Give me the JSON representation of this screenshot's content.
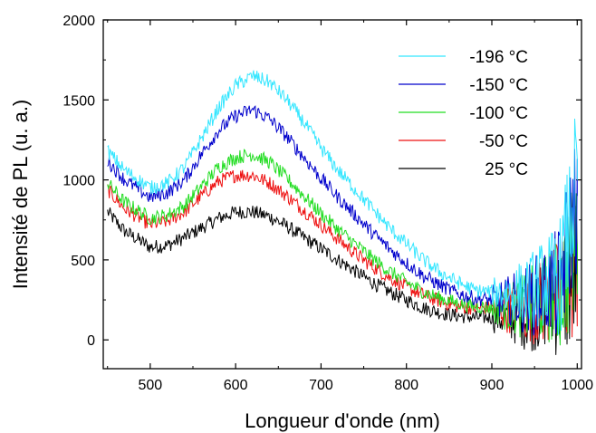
{
  "chart_data": {
    "type": "line",
    "title": "",
    "xlabel": "Longueur d'onde (nm)",
    "ylabel": "Intensité de PL (u. a.)",
    "xlim": [
      445,
      1005
    ],
    "ylim": [
      -180,
      2000
    ],
    "x_ticks": [
      500,
      600,
      700,
      800,
      900,
      1000
    ],
    "y_ticks": [
      0,
      500,
      1000,
      1500,
      2000
    ],
    "x_tick_labels": [
      "500",
      "600",
      "700",
      "800",
      "900",
      "1000"
    ],
    "y_tick_labels": [
      "0",
      "500",
      "1000",
      "1500",
      "2000"
    ],
    "grid": false,
    "legend_position": "top-right",
    "series": [
      {
        "name": "-196 °C",
        "color": "#33e6ff",
        "x": [
          450,
          470,
          500,
          520,
          540,
          560,
          580,
          600,
          620,
          640,
          660,
          680,
          700,
          720,
          740,
          760,
          780,
          800,
          820,
          840,
          860,
          880,
          900,
          920,
          940,
          960,
          980,
          1000
        ],
        "y": [
          1180,
          1060,
          950,
          980,
          1080,
          1260,
          1450,
          1590,
          1650,
          1610,
          1500,
          1360,
          1200,
          1060,
          940,
          820,
          700,
          600,
          500,
          420,
          360,
          310,
          300,
          290,
          300,
          350,
          400,
          1000
        ]
      },
      {
        "name": "-150 °C",
        "color": "#0000cc",
        "x": [
          450,
          470,
          500,
          520,
          540,
          560,
          580,
          600,
          620,
          640,
          660,
          680,
          700,
          720,
          740,
          760,
          780,
          800,
          820,
          840,
          860,
          880,
          900,
          920,
          940,
          960,
          980,
          1000
        ],
        "y": [
          1120,
          1000,
          890,
          920,
          1000,
          1160,
          1310,
          1400,
          1440,
          1380,
          1270,
          1140,
          1010,
          890,
          780,
          670,
          570,
          480,
          400,
          340,
          290,
          260,
          250,
          250,
          250,
          300,
          350,
          900
        ]
      },
      {
        "name": "-100 °C",
        "color": "#22dd22",
        "x": [
          450,
          470,
          500,
          520,
          540,
          560,
          580,
          600,
          620,
          640,
          660,
          680,
          700,
          720,
          740,
          760,
          780,
          800,
          820,
          840,
          860,
          880,
          900,
          920,
          940,
          960,
          980,
          1000
        ],
        "y": [
          980,
          860,
          760,
          780,
          840,
          960,
          1080,
          1140,
          1160,
          1110,
          1010,
          900,
          790,
          690,
          600,
          510,
          430,
          360,
          300,
          260,
          230,
          210,
          200,
          200,
          210,
          260,
          300,
          600
        ]
      },
      {
        "name": "-50 °C",
        "color": "#ee1111",
        "x": [
          450,
          470,
          500,
          520,
          540,
          560,
          580,
          600,
          620,
          640,
          660,
          680,
          700,
          720,
          740,
          760,
          780,
          800,
          820,
          840,
          860,
          880,
          900,
          920,
          940,
          960,
          980,
          1000
        ],
        "y": [
          940,
          820,
          720,
          740,
          800,
          900,
          990,
          1030,
          1030,
          980,
          900,
          810,
          720,
          630,
          540,
          460,
          390,
          330,
          280,
          240,
          210,
          200,
          200,
          190,
          200,
          240,
          280,
          500
        ]
      },
      {
        "name": "25 °C",
        "color": "#000000",
        "x": [
          450,
          470,
          500,
          520,
          540,
          560,
          580,
          600,
          620,
          640,
          660,
          680,
          700,
          720,
          740,
          760,
          780,
          800,
          820,
          840,
          860,
          880,
          900,
          920,
          940,
          960,
          980,
          1000
        ],
        "y": [
          800,
          680,
          580,
          590,
          640,
          700,
          760,
          800,
          800,
          770,
          710,
          640,
          570,
          500,
          430,
          360,
          300,
          250,
          200,
          170,
          150,
          140,
          140,
          140,
          150,
          200,
          250,
          400
        ]
      }
    ]
  }
}
